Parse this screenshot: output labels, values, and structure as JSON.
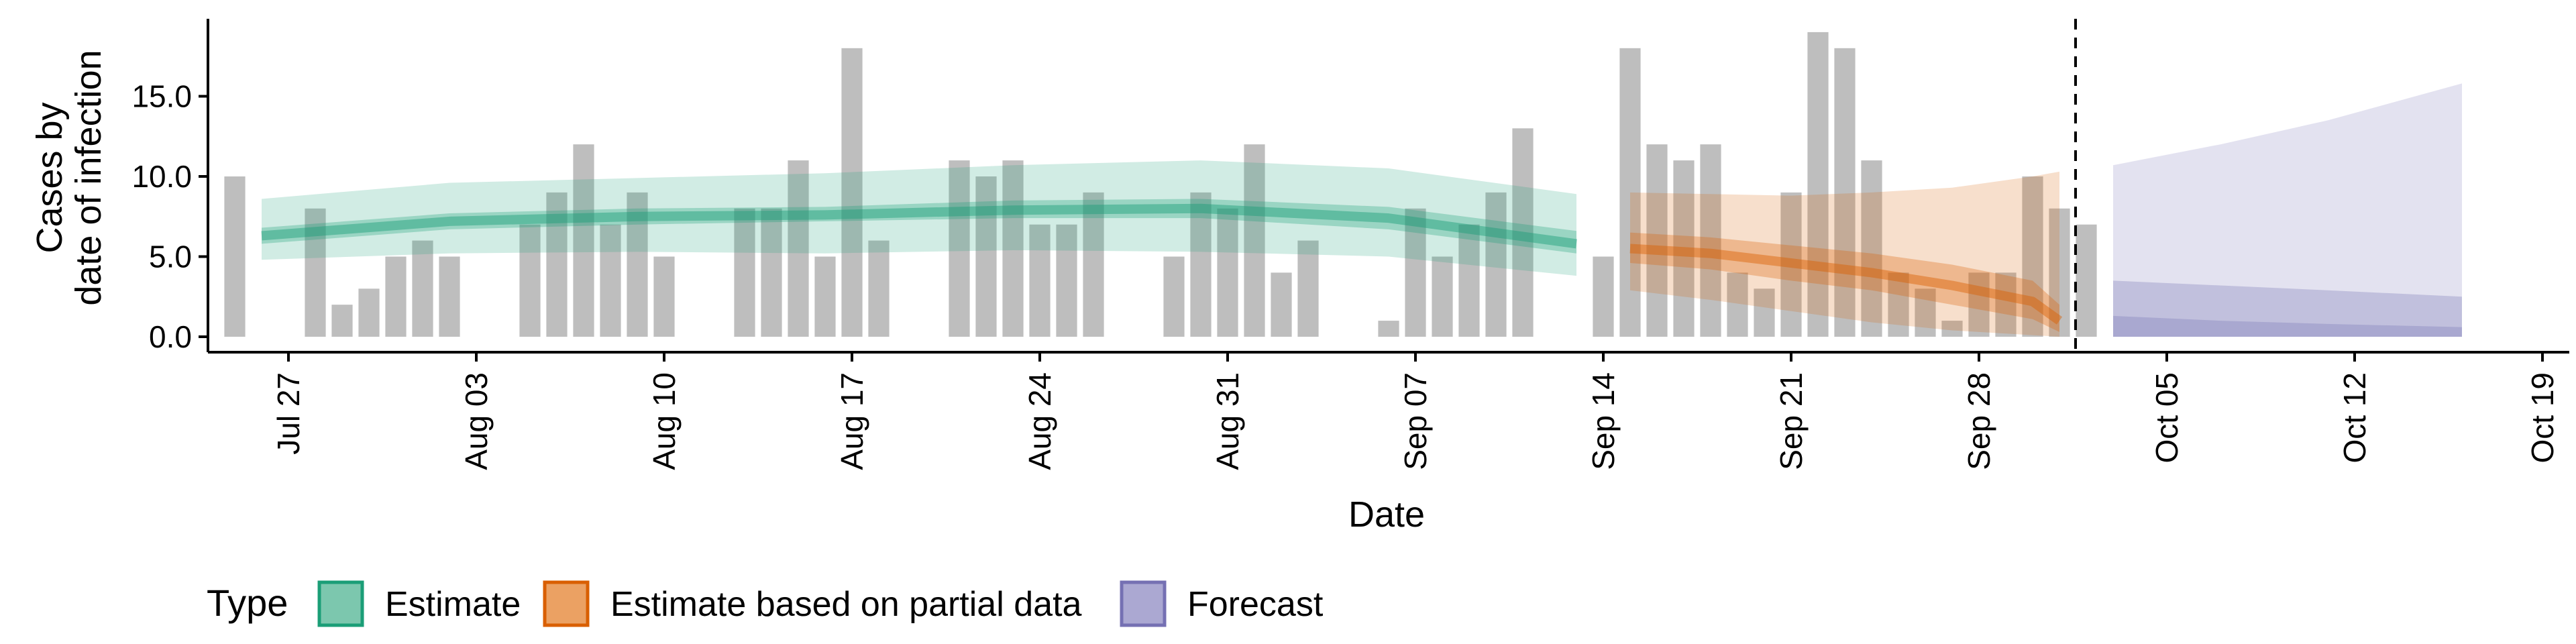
{
  "chart_data": {
    "type": "bar",
    "xlabel": "Date",
    "ylabel": [
      "Cases by",
      "date of infection"
    ],
    "ylim": [
      0,
      20
    ],
    "y_ticks": [
      "0.0",
      "5.0",
      "10.0",
      "15.0"
    ],
    "y_tick_values": [
      0,
      5,
      10,
      15
    ],
    "x_range": [
      "2020-07-24",
      "2020-10-20"
    ],
    "x_ticks": [
      {
        "date": "2020-07-27",
        "label": "Jul 27"
      },
      {
        "date": "2020-08-03",
        "label": "Aug 03"
      },
      {
        "date": "2020-08-10",
        "label": "Aug 10"
      },
      {
        "date": "2020-08-17",
        "label": "Aug 17"
      },
      {
        "date": "2020-08-24",
        "label": "Aug 24"
      },
      {
        "date": "2020-08-31",
        "label": "Aug 31"
      },
      {
        "date": "2020-09-07",
        "label": "Sep 07"
      },
      {
        "date": "2020-09-14",
        "label": "Sep 14"
      },
      {
        "date": "2020-09-21",
        "label": "Sep 21"
      },
      {
        "date": "2020-09-28",
        "label": "Sep 28"
      },
      {
        "date": "2020-10-05",
        "label": "Oct 05"
      },
      {
        "date": "2020-10-12",
        "label": "Oct 12"
      },
      {
        "date": "2020-10-19",
        "label": "Oct 19"
      }
    ],
    "forecast_start_date": "2020-10-02",
    "observed_cases": {
      "dates": [
        "2020-07-25",
        "2020-07-26",
        "2020-07-27",
        "2020-07-28",
        "2020-07-29",
        "2020-07-30",
        "2020-07-31",
        "2020-08-01",
        "2020-08-02",
        "2020-08-03",
        "2020-08-04",
        "2020-08-05",
        "2020-08-06",
        "2020-08-07",
        "2020-08-08",
        "2020-08-09",
        "2020-08-10",
        "2020-08-11",
        "2020-08-12",
        "2020-08-13",
        "2020-08-14",
        "2020-08-15",
        "2020-08-16",
        "2020-08-17",
        "2020-08-18",
        "2020-08-19",
        "2020-08-20",
        "2020-08-21",
        "2020-08-22",
        "2020-08-23",
        "2020-08-24",
        "2020-08-25",
        "2020-08-26",
        "2020-08-27",
        "2020-08-28",
        "2020-08-29",
        "2020-08-30",
        "2020-08-31",
        "2020-09-01",
        "2020-09-02",
        "2020-09-03",
        "2020-09-04",
        "2020-09-05",
        "2020-09-06",
        "2020-09-07",
        "2020-09-08",
        "2020-09-09",
        "2020-09-10",
        "2020-09-11",
        "2020-09-12",
        "2020-09-13",
        "2020-09-14",
        "2020-09-15",
        "2020-09-16",
        "2020-09-17",
        "2020-09-18",
        "2020-09-19",
        "2020-09-20",
        "2020-09-21",
        "2020-09-22",
        "2020-09-23",
        "2020-09-24",
        "2020-09-25",
        "2020-09-26",
        "2020-09-27",
        "2020-09-28",
        "2020-09-29",
        "2020-09-30",
        "2020-10-01",
        "2020-10-02"
      ],
      "values": [
        10,
        0,
        0,
        8,
        2,
        3,
        5,
        6,
        5,
        0,
        0,
        7,
        9,
        12,
        7,
        9,
        5,
        0,
        0,
        8,
        8,
        11,
        5,
        18,
        6,
        0,
        0,
        11,
        10,
        11,
        7,
        7,
        9,
        0,
        0,
        5,
        9,
        8,
        12,
        4,
        6,
        0,
        0,
        1,
        8,
        5,
        7,
        9,
        13,
        0,
        0,
        5,
        18,
        12,
        11,
        12,
        4,
        3,
        9,
        19,
        18,
        11,
        4,
        3,
        1,
        4,
        4,
        10,
        8,
        7
      ]
    },
    "series": [
      {
        "name": "Estimate",
        "color": "#1B9E77",
        "dates": [
          "2020-07-26",
          "2020-08-02",
          "2020-08-09",
          "2020-08-16",
          "2020-08-23",
          "2020-08-30",
          "2020-09-06",
          "2020-09-13"
        ],
        "median": [
          6.3,
          7.2,
          7.5,
          7.6,
          7.9,
          8.0,
          7.4,
          5.8
        ],
        "lower_50": [
          5.8,
          6.7,
          7.0,
          7.2,
          7.4,
          7.4,
          6.7,
          5.2
        ],
        "upper_50": [
          6.8,
          7.7,
          8.0,
          8.1,
          8.5,
          8.6,
          8.1,
          6.6
        ],
        "lower_90": [
          4.8,
          5.2,
          5.3,
          5.2,
          5.4,
          5.3,
          5.0,
          3.8
        ],
        "upper_90": [
          8.6,
          9.6,
          9.9,
          10.2,
          10.7,
          11.0,
          10.5,
          8.9
        ]
      },
      {
        "name": "Estimate based on partial data",
        "color": "#D95F02",
        "dates": [
          "2020-09-15",
          "2020-09-18",
          "2020-09-21",
          "2020-09-24",
          "2020-09-27",
          "2020-09-30",
          "2020-10-01"
        ],
        "median": [
          5.5,
          5.2,
          4.6,
          4.0,
          3.2,
          2.2,
          1.0
        ],
        "lower_50": [
          4.6,
          4.2,
          3.5,
          2.9,
          2.0,
          1.1,
          0.3
        ],
        "upper_50": [
          6.5,
          6.2,
          5.7,
          5.2,
          4.5,
          3.5,
          2.0
        ],
        "lower_90": [
          2.9,
          2.3,
          1.6,
          0.9,
          0.4,
          0.1,
          0.0
        ],
        "upper_90": [
          9.0,
          8.9,
          8.8,
          9.0,
          9.3,
          10.0,
          10.3
        ]
      },
      {
        "name": "Forecast",
        "color": "#7570B3",
        "dates": [
          "2020-10-03",
          "2020-10-07",
          "2020-10-11",
          "2020-10-16"
        ],
        "lower_90": [
          0.0,
          0.0,
          0.0,
          0.0
        ],
        "upper_90": [
          10.7,
          12.0,
          13.5,
          15.8
        ],
        "lower_50": [
          0.0,
          0.0,
          0.0,
          0.0
        ],
        "upper_50": [
          3.5,
          3.2,
          2.9,
          2.5
        ],
        "lower_20": [
          0.0,
          0.0,
          0.0,
          0.0
        ],
        "upper_20": [
          1.3,
          1.0,
          0.8,
          0.6
        ]
      }
    ],
    "legend": {
      "title": "Type",
      "position": "bottom",
      "items": [
        {
          "label": "Estimate",
          "fill": "#7CC7AE",
          "stroke": "#1B9E77"
        },
        {
          "label": "Estimate based on partial data",
          "fill": "#EBA163",
          "stroke": "#D95F02"
        },
        {
          "label": "Forecast",
          "fill": "#ABA8D2",
          "stroke": "#7570B3"
        }
      ]
    },
    "bar_color": "#BEBEBE",
    "grid": false
  }
}
